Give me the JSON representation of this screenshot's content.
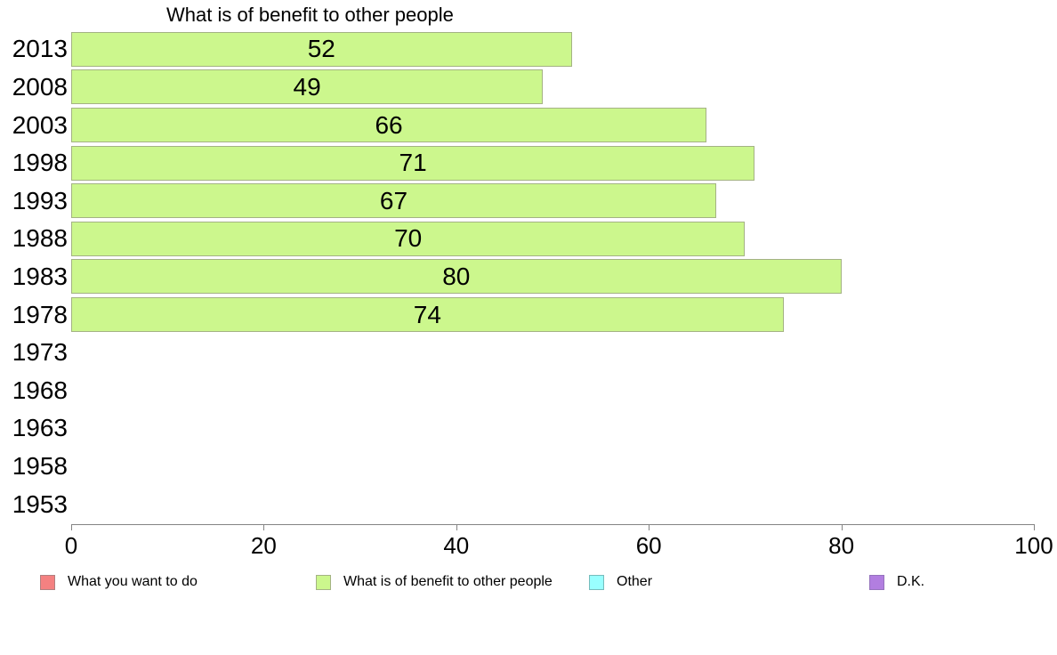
{
  "chart_data": {
    "type": "bar",
    "orientation": "horizontal",
    "title": "What is of benefit to other people",
    "categories": [
      "2013",
      "2008",
      "2003",
      "1998",
      "1993",
      "1988",
      "1983",
      "1978",
      "1973",
      "1968",
      "1963",
      "1958",
      "1953"
    ],
    "values": [
      52,
      49,
      66,
      71,
      67,
      70,
      80,
      74,
      null,
      null,
      null,
      null,
      null
    ],
    "xlim": [
      0,
      100
    ],
    "x_ticks": [
      0,
      20,
      40,
      60,
      80,
      100
    ],
    "grid": false,
    "bar_color": "#ccf78d",
    "bar_border_color": "#a4b284",
    "axis_color": "#848484",
    "legend_position": "bottom",
    "legend": [
      {
        "label": "What you want to do",
        "color": "#f48181",
        "border": "#b08080"
      },
      {
        "label": "What is of benefit to other people",
        "color": "#ccf78d",
        "border": "#a4b284"
      },
      {
        "label": "Other",
        "color": "#99ffff",
        "border": "#76bcbc"
      },
      {
        "label": "D.K.",
        "color": "#b27ee0",
        "border": "#9573bd"
      }
    ]
  }
}
